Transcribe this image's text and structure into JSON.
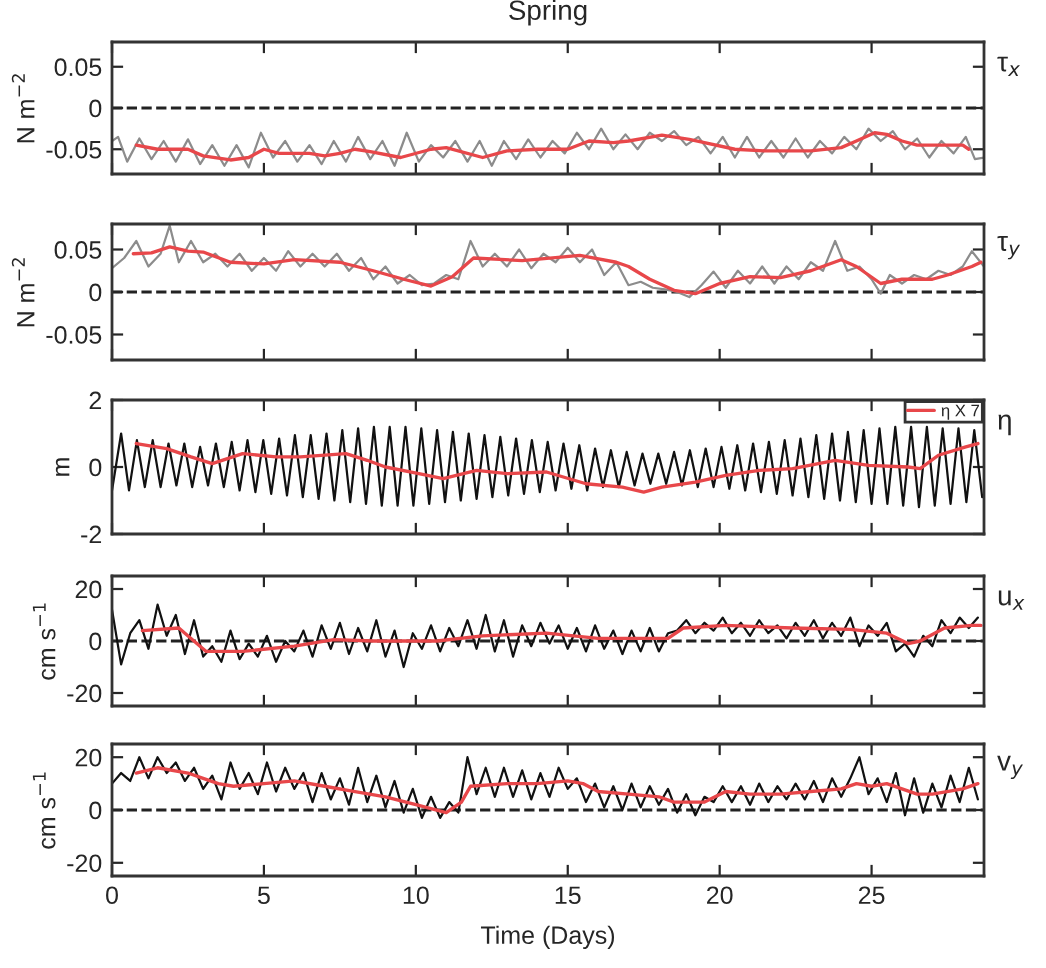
{
  "chart_data": [
    {
      "type": "line",
      "title": "Spring",
      "ylabel": "N m$^{−2}$",
      "xlim": [
        0,
        28.7
      ],
      "xticks": [
        0,
        5,
        10,
        15,
        20,
        25
      ],
      "ylim": [
        -0.08,
        0.08
      ],
      "yticks": [
        -0.05,
        0,
        0.05
      ],
      "tick_labels": "y",
      "grid": false,
      "annotations": [
        "τ$_{x}$"
      ],
      "ref_lines": [
        {
          "axis": "y",
          "value": 0,
          "color": "#222222",
          "line_style": "dashed"
        }
      ],
      "series": [
        {
          "color": "#8c8c8c",
          "x": [
            0,
            0.2,
            0.5,
            0.9,
            1.3,
            1.7,
            2.1,
            2.5,
            2.9,
            3.3,
            3.7,
            4.1,
            4.5,
            4.9,
            5.3,
            5.7,
            6.1,
            6.5,
            6.9,
            7.3,
            7.7,
            8.1,
            8.5,
            8.9,
            9.3,
            9.7,
            10.1,
            10.5,
            10.9,
            11.3,
            11.7,
            12.1,
            12.5,
            12.9,
            13.3,
            13.7,
            14.1,
            14.5,
            14.9,
            15.3,
            15.7,
            16.1,
            16.5,
            16.9,
            17.3,
            17.7,
            18.1,
            18.5,
            18.9,
            19.3,
            19.7,
            20.1,
            20.5,
            20.9,
            21.3,
            21.7,
            22.1,
            22.5,
            22.9,
            23.3,
            23.7,
            24.1,
            24.5,
            24.9,
            25.3,
            25.7,
            26.1,
            26.5,
            26.9,
            27.3,
            27.7,
            28.1,
            28.4,
            28.7
          ],
          "values": [
            -0.04,
            -0.035,
            -0.065,
            -0.037,
            -0.062,
            -0.04,
            -0.065,
            -0.038,
            -0.068,
            -0.045,
            -0.07,
            -0.045,
            -0.072,
            -0.03,
            -0.06,
            -0.04,
            -0.065,
            -0.045,
            -0.068,
            -0.04,
            -0.065,
            -0.035,
            -0.062,
            -0.04,
            -0.07,
            -0.03,
            -0.065,
            -0.045,
            -0.06,
            -0.04,
            -0.065,
            -0.04,
            -0.07,
            -0.04,
            -0.062,
            -0.038,
            -0.06,
            -0.04,
            -0.055,
            -0.03,
            -0.05,
            -0.025,
            -0.05,
            -0.032,
            -0.05,
            -0.03,
            -0.04,
            -0.028,
            -0.045,
            -0.035,
            -0.055,
            -0.035,
            -0.06,
            -0.035,
            -0.06,
            -0.04,
            -0.06,
            -0.037,
            -0.06,
            -0.04,
            -0.055,
            -0.035,
            -0.05,
            -0.025,
            -0.04,
            -0.028,
            -0.05,
            -0.037,
            -0.06,
            -0.04,
            -0.055,
            -0.035,
            -0.062,
            -0.06
          ]
        },
        {
          "color": "#e8474a",
          "x": [
            0.8,
            1.5,
            2.5,
            3.0,
            3.9,
            4.5,
            5.0,
            5.5,
            6.5,
            7.0,
            7.5,
            8.0,
            8.5,
            9.5,
            10.5,
            11.0,
            12.2,
            13.0,
            14.0,
            15.0,
            15.7,
            16.5,
            17.0,
            18.1,
            19.0,
            19.5,
            20.5,
            21.5,
            22.0,
            23.0,
            24.0,
            24.5,
            25.1,
            25.5,
            26.0,
            26.5,
            27.0,
            27.5,
            28.0,
            28.2
          ],
          "values": [
            -0.045,
            -0.05,
            -0.05,
            -0.058,
            -0.063,
            -0.06,
            -0.05,
            -0.055,
            -0.055,
            -0.058,
            -0.055,
            -0.05,
            -0.053,
            -0.06,
            -0.05,
            -0.048,
            -0.06,
            -0.052,
            -0.05,
            -0.05,
            -0.04,
            -0.042,
            -0.04,
            -0.033,
            -0.038,
            -0.042,
            -0.05,
            -0.052,
            -0.052,
            -0.052,
            -0.048,
            -0.04,
            -0.03,
            -0.032,
            -0.04,
            -0.045,
            -0.045,
            -0.045,
            -0.045,
            -0.05
          ]
        }
      ]
    },
    {
      "type": "line",
      "ylabel": "N m$^{−2}$",
      "xlim": [
        0,
        28.7
      ],
      "xticks": [
        0,
        5,
        10,
        15,
        20,
        25
      ],
      "ylim": [
        -0.08,
        0.08
      ],
      "yticks": [
        -0.05,
        0,
        0.05
      ],
      "tick_labels": "y",
      "grid": false,
      "annotations": [
        "τ$_{y}$"
      ],
      "ref_lines": [
        {
          "axis": "y",
          "value": 0,
          "color": "#222222",
          "line_style": "dashed"
        }
      ],
      "series": [
        {
          "color": "#8c8c8c",
          "x": [
            0,
            0.4,
            0.8,
            1.2,
            1.6,
            1.9,
            2.2,
            2.6,
            3.0,
            3.4,
            3.8,
            4.2,
            4.6,
            5.0,
            5.4,
            5.8,
            6.2,
            6.6,
            7.0,
            7.4,
            7.8,
            8.2,
            8.6,
            9.0,
            9.4,
            9.8,
            10.2,
            10.6,
            11.0,
            11.4,
            11.8,
            12.2,
            12.6,
            13.0,
            13.4,
            13.8,
            14.2,
            14.6,
            15.0,
            15.4,
            15.8,
            16.2,
            16.6,
            17.0,
            17.4,
            17.8,
            18.2,
            18.6,
            19.0,
            19.4,
            19.8,
            20.2,
            20.6,
            21.0,
            21.4,
            21.8,
            22.2,
            22.6,
            23.0,
            23.4,
            23.8,
            24.2,
            24.6,
            25.0,
            25.3,
            25.6,
            26.0,
            26.4,
            26.8,
            27.2,
            27.6,
            28.0,
            28.3,
            28.7
          ],
          "values": [
            0.028,
            0.04,
            0.06,
            0.03,
            0.045,
            0.078,
            0.035,
            0.06,
            0.035,
            0.045,
            0.03,
            0.045,
            0.025,
            0.04,
            0.025,
            0.048,
            0.03,
            0.045,
            0.03,
            0.045,
            0.025,
            0.04,
            0.015,
            0.03,
            0.01,
            0.02,
            0.008,
            0.01,
            0.02,
            0.015,
            0.06,
            0.03,
            0.045,
            0.03,
            0.05,
            0.028,
            0.045,
            0.035,
            0.052,
            0.035,
            0.05,
            0.02,
            0.035,
            0.008,
            0.012,
            0.005,
            0.003,
            0.0,
            -0.006,
            0.008,
            0.024,
            0.005,
            0.025,
            0.01,
            0.03,
            0.01,
            0.03,
            0.015,
            0.035,
            0.025,
            0.06,
            0.025,
            0.03,
            0.015,
            -0.002,
            0.02,
            0.01,
            0.02,
            0.015,
            0.025,
            0.02,
            0.03,
            0.048,
            0.03
          ]
        },
        {
          "color": "#e8474a",
          "x": [
            0.7,
            1.3,
            1.9,
            2.5,
            3.0,
            3.9,
            5.0,
            6.0,
            7.5,
            8.6,
            9.6,
            10.5,
            11.2,
            11.9,
            13.5,
            15.4,
            16.6,
            17.0,
            17.7,
            18.5,
            19.2,
            20.0,
            21.0,
            22.0,
            23.0,
            24.0,
            24.5,
            25.3,
            26.0,
            27.0,
            27.5,
            28.3,
            28.6
          ],
          "values": [
            0.045,
            0.046,
            0.053,
            0.048,
            0.047,
            0.035,
            0.033,
            0.038,
            0.035,
            0.025,
            0.015,
            0.007,
            0.018,
            0.04,
            0.037,
            0.043,
            0.035,
            0.03,
            0.015,
            0.002,
            -0.002,
            0.01,
            0.018,
            0.017,
            0.025,
            0.038,
            0.03,
            0.01,
            0.015,
            0.015,
            0.02,
            0.03,
            0.035
          ]
        }
      ]
    },
    {
      "type": "line",
      "ylabel": "m",
      "xlim": [
        0,
        28.7
      ],
      "xticks": [
        0,
        5,
        10,
        15,
        20,
        25
      ],
      "ylim": [
        -2,
        2
      ],
      "yticks": [
        -2,
        0,
        2
      ],
      "tick_labels": "y",
      "grid": false,
      "legend": "top right",
      "annotations": [
        "η"
      ],
      "series": [
        {
          "color": "#111111",
          "x": [
            0,
            0.3,
            0.56,
            0.82,
            1.08,
            1.34,
            1.6,
            1.86,
            2.12,
            2.38,
            2.64,
            2.9,
            3.16,
            3.42,
            3.68,
            3.94,
            4.2,
            4.46,
            4.72,
            4.98,
            5.24,
            5.5,
            5.76,
            6.02,
            6.28,
            6.54,
            6.8,
            7.06,
            7.32,
            7.58,
            7.84,
            8.1,
            8.36,
            8.62,
            8.88,
            9.14,
            9.4,
            9.66,
            9.92,
            10.18,
            10.44,
            10.7,
            10.96,
            11.22,
            11.48,
            11.74,
            12.0,
            12.26,
            12.52,
            12.78,
            13.04,
            13.3,
            13.56,
            13.82,
            14.08,
            14.34,
            14.6,
            14.86,
            15.12,
            15.38,
            15.64,
            15.9,
            16.16,
            16.42,
            16.68,
            16.94,
            17.2,
            17.46,
            17.72,
            17.98,
            18.24,
            18.5,
            18.76,
            19.02,
            19.28,
            19.54,
            19.8,
            20.06,
            20.32,
            20.58,
            20.84,
            21.1,
            21.36,
            21.62,
            21.88,
            22.14,
            22.4,
            22.66,
            22.92,
            23.18,
            23.44,
            23.7,
            23.96,
            24.22,
            24.48,
            24.74,
            25.0,
            25.26,
            25.52,
            25.78,
            26.04,
            26.3,
            26.56,
            26.82,
            27.08,
            27.34,
            27.6,
            27.86,
            28.12,
            28.38,
            28.64
          ],
          "values": [
            -0.7,
            1.0,
            -0.7,
            0.8,
            -0.6,
            0.8,
            -0.6,
            0.7,
            -0.55,
            0.7,
            -0.6,
            0.6,
            -0.55,
            0.7,
            -0.6,
            0.75,
            -0.7,
            0.8,
            -0.75,
            0.8,
            -0.8,
            0.85,
            -0.85,
            0.95,
            -0.9,
            0.95,
            -0.95,
            1.0,
            -1.0,
            1.1,
            -1.05,
            1.15,
            -1.1,
            1.2,
            -1.15,
            1.2,
            -1.15,
            1.2,
            -1.15,
            1.15,
            -1.1,
            1.1,
            -1.05,
            1.05,
            -1.0,
            1.0,
            -0.95,
            0.95,
            -0.9,
            0.9,
            -0.85,
            0.85,
            -0.8,
            0.8,
            -0.75,
            0.75,
            -0.7,
            0.7,
            -0.65,
            0.65,
            -0.7,
            0.55,
            -0.6,
            0.5,
            -0.6,
            0.45,
            -0.55,
            0.4,
            -0.5,
            0.4,
            -0.5,
            0.45,
            -0.55,
            0.5,
            -0.6,
            0.55,
            -0.6,
            0.6,
            -0.65,
            0.65,
            -0.7,
            0.7,
            -0.75,
            0.75,
            -0.8,
            0.8,
            -0.85,
            0.85,
            -0.9,
            0.95,
            -0.95,
            1.0,
            -1.0,
            1.05,
            -1.05,
            1.1,
            -1.1,
            1.15,
            -1.1,
            1.2,
            -1.15,
            1.2,
            -1.2,
            1.2,
            -1.15,
            1.15,
            -1.1,
            1.15,
            -1.05,
            1.1,
            -0.9
          ]
        },
        {
          "name": "η X 7",
          "color": "#e8474a",
          "x": [
            0.8,
            1.8,
            2.6,
            3.3,
            4.3,
            5.4,
            6.2,
            7.7,
            8.4,
            9.0,
            10.1,
            10.9,
            12.0,
            13.0,
            14.3,
            15.6,
            16.8,
            17.5,
            18.1,
            19.2,
            20.2,
            21.3,
            22.4,
            23.8,
            24.9,
            26.2,
            26.6,
            27.2,
            28.1,
            28.5
          ],
          "values": [
            0.7,
            0.55,
            0.3,
            0.1,
            0.4,
            0.3,
            0.3,
            0.4,
            0.2,
            0.0,
            -0.2,
            -0.35,
            -0.1,
            -0.2,
            -0.15,
            -0.5,
            -0.6,
            -0.75,
            -0.6,
            -0.45,
            -0.25,
            -0.1,
            -0.05,
            0.2,
            0.05,
            0.0,
            -0.05,
            0.35,
            0.6,
            0.7
          ]
        }
      ]
    },
    {
      "type": "line",
      "ylabel": "cm s$^{−1}$",
      "xlim": [
        0,
        28.7
      ],
      "xticks": [
        0,
        5,
        10,
        15,
        20,
        25
      ],
      "ylim": [
        -25,
        25
      ],
      "yticks": [
        -20,
        0,
        20
      ],
      "tick_labels": "y",
      "grid": false,
      "annotations": [
        "u$_{x}$"
      ],
      "ref_lines": [
        {
          "axis": "y",
          "value": 0,
          "color": "#222222",
          "line_style": "dashed"
        }
      ],
      "series": [
        {
          "color": "#111111",
          "x": [
            0,
            0.3,
            0.6,
            0.9,
            1.2,
            1.5,
            1.8,
            2.1,
            2.4,
            2.7,
            3.0,
            3.3,
            3.6,
            3.9,
            4.2,
            4.5,
            4.8,
            5.1,
            5.4,
            5.7,
            6.0,
            6.3,
            6.6,
            6.9,
            7.2,
            7.5,
            7.8,
            8.1,
            8.4,
            8.7,
            9.0,
            9.3,
            9.6,
            9.9,
            10.2,
            10.5,
            10.8,
            11.1,
            11.4,
            11.7,
            12.0,
            12.3,
            12.6,
            12.9,
            13.2,
            13.5,
            13.8,
            14.1,
            14.4,
            14.7,
            15.0,
            15.3,
            15.6,
            15.9,
            16.2,
            16.5,
            16.8,
            17.1,
            17.4,
            17.7,
            18.0,
            18.3,
            18.6,
            18.9,
            19.2,
            19.5,
            19.8,
            20.1,
            20.4,
            20.7,
            21.0,
            21.3,
            21.6,
            21.9,
            22.2,
            22.5,
            22.8,
            23.1,
            23.4,
            23.7,
            24.0,
            24.3,
            24.6,
            24.9,
            25.2,
            25.5,
            25.8,
            26.1,
            26.4,
            26.7,
            27.0,
            27.3,
            27.6,
            27.9,
            28.2,
            28.5
          ],
          "values": [
            12,
            -9,
            3,
            8,
            -3,
            14,
            2,
            10,
            -5,
            8,
            -6,
            -2,
            -8,
            4,
            -7,
            -1,
            -6,
            2,
            -8,
            0,
            -4,
            4,
            -6,
            6,
            -3,
            7,
            -5,
            5,
            -4,
            8,
            -6,
            4,
            -10,
            3,
            -3,
            6,
            -4,
            5,
            -2,
            8,
            -3,
            10,
            -4,
            8,
            -6,
            6,
            -2,
            7,
            -1,
            6,
            -3,
            5,
            -4,
            6,
            -3,
            4,
            -5,
            4,
            -4,
            5,
            -4,
            3,
            4,
            8,
            3,
            7,
            4,
            9,
            3,
            7,
            2,
            8,
            3,
            6,
            1,
            7,
            2,
            8,
            1,
            7,
            2,
            9,
            -2,
            6,
            2,
            7,
            -4,
            -1,
            -6,
            2,
            -2,
            8,
            3,
            9,
            5,
            9
          ]
        },
        {
          "color": "#e8474a",
          "x": [
            1.0,
            2.2,
            2.6,
            3.1,
            4.3,
            6.0,
            7.3,
            8.6,
            10.7,
            12.2,
            14.3,
            16.0,
            18.3,
            18.8,
            20.2,
            22.4,
            24.3,
            25.5,
            26.2,
            26.6,
            27.4,
            28.3,
            28.6
          ],
          "values": [
            4,
            5,
            1,
            -4,
            -4,
            -2,
            0.5,
            0,
            0,
            2,
            3,
            1,
            1,
            5,
            6,
            5,
            4.5,
            3,
            -1,
            0,
            5,
            6,
            6
          ]
        }
      ]
    },
    {
      "type": "line",
      "ylabel": "cm s$^{−1}$",
      "xlabel": "Time (Days)",
      "xlim": [
        0,
        28.7
      ],
      "xticks": [
        0,
        5,
        10,
        15,
        20,
        25
      ],
      "ylim": [
        -25,
        25
      ],
      "yticks": [
        -20,
        0,
        20
      ],
      "grid": false,
      "annotations": [
        "v$_{y}$"
      ],
      "ref_lines": [
        {
          "axis": "y",
          "value": 0,
          "color": "#222222",
          "line_style": "dashed"
        }
      ],
      "series": [
        {
          "color": "#111111",
          "x": [
            0,
            0.3,
            0.6,
            0.9,
            1.2,
            1.5,
            1.8,
            2.1,
            2.4,
            2.7,
            3.0,
            3.3,
            3.6,
            3.9,
            4.2,
            4.5,
            4.8,
            5.1,
            5.4,
            5.7,
            6.0,
            6.3,
            6.6,
            6.9,
            7.2,
            7.5,
            7.8,
            8.1,
            8.4,
            8.7,
            9.0,
            9.3,
            9.6,
            9.9,
            10.2,
            10.5,
            10.8,
            11.1,
            11.4,
            11.7,
            12.0,
            12.3,
            12.6,
            12.9,
            13.2,
            13.5,
            13.8,
            14.1,
            14.4,
            14.7,
            15.0,
            15.3,
            15.6,
            15.9,
            16.2,
            16.5,
            16.8,
            17.1,
            17.4,
            17.7,
            18.0,
            18.3,
            18.6,
            18.9,
            19.2,
            19.5,
            19.8,
            20.1,
            20.4,
            20.7,
            21.0,
            21.3,
            21.6,
            21.9,
            22.2,
            22.5,
            22.8,
            23.1,
            23.4,
            23.7,
            24.0,
            24.3,
            24.6,
            24.9,
            25.2,
            25.5,
            25.8,
            26.1,
            26.4,
            26.7,
            27.0,
            27.3,
            27.6,
            27.9,
            28.2,
            28.5
          ],
          "values": [
            10,
            14,
            11,
            20,
            12,
            20,
            14,
            18,
            11,
            16,
            8,
            13,
            4,
            18,
            8,
            14,
            6,
            18,
            7,
            16,
            8,
            14,
            3,
            14,
            4,
            12,
            2,
            16,
            3,
            13,
            1,
            11,
            -1,
            8,
            -3,
            5,
            -3,
            3,
            -1,
            20,
            6,
            16,
            5,
            16,
            5,
            15,
            4,
            14,
            5,
            16,
            8,
            12,
            3,
            10,
            1,
            9,
            0,
            10,
            1,
            9,
            2,
            8,
            -1,
            6,
            -2,
            5,
            3,
            9,
            3,
            9,
            2,
            10,
            3,
            9,
            4,
            10,
            4,
            11,
            3,
            12,
            5,
            12,
            20,
            6,
            12,
            3,
            14,
            -2,
            12,
            -1,
            10,
            1,
            13,
            3,
            16,
            4
          ]
        },
        {
          "color": "#e8474a",
          "x": [
            0.8,
            1.5,
            2.5,
            3.0,
            3.5,
            4.0,
            5.0,
            6.0,
            7.0,
            8.0,
            9.0,
            10.0,
            11.0,
            11.5,
            11.8,
            13.0,
            14.0,
            15.0,
            15.5,
            16.0,
            17.0,
            18.0,
            18.5,
            19.5,
            20.2,
            21.0,
            22.0,
            23.0,
            24.0,
            24.5,
            25.0,
            25.5,
            26.0,
            26.5,
            27.0,
            28.0,
            28.5
          ],
          "values": [
            14,
            16,
            14,
            12,
            10,
            9,
            10,
            11,
            9,
            7,
            5,
            2,
            -1,
            3,
            9,
            10,
            10,
            11,
            10,
            7,
            6,
            5,
            3,
            3,
            7,
            6,
            6,
            7,
            8,
            10,
            9,
            10,
            8,
            6,
            6,
            8,
            10
          ]
        }
      ]
    }
  ]
}
